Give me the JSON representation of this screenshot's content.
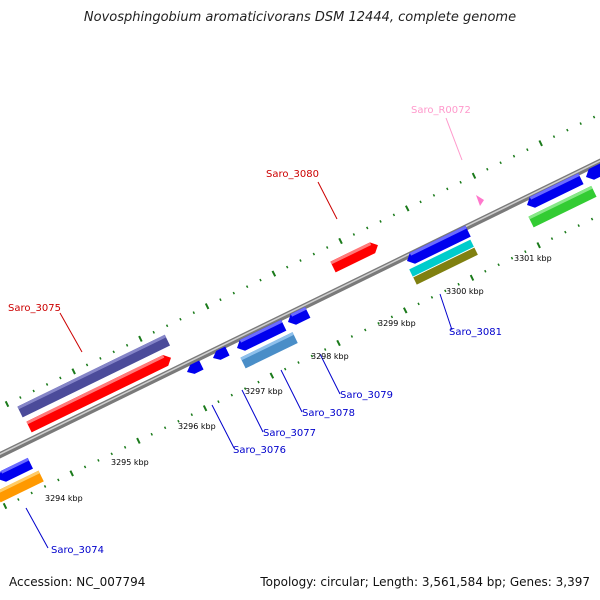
{
  "title": "Novosphingobium aromaticivorans DSM 12444, complete genome",
  "footer": {
    "accession": "Accession: NC_007794",
    "summary": "Topology: circular; Length: 3,561,584 bp; Genes: 3,397"
  },
  "colors": {
    "backbone": "#8a8a8a",
    "tick": "#1a7a1a",
    "forward_label": "#cc0000",
    "reverse_label": "#0000cc",
    "rna_label": "#ff99cc",
    "kbp_label": "#000000"
  },
  "scale_labels": [
    "3294 kbp",
    "3295 kbp",
    "3296 kbp",
    "3297 kbp",
    "3298 kbp",
    "3299 kbp",
    "3300 kbp",
    "3301 kbp"
  ],
  "gene_labels": {
    "forward": [
      "Saro_3075",
      "Saro_3080"
    ],
    "reverse": [
      "Saro_3074",
      "Saro_3076",
      "Saro_3077",
      "Saro_3078",
      "Saro_3079",
      "Saro_3081"
    ],
    "rna": [
      "Saro_R0072"
    ]
  },
  "feature_colors": {
    "forward_gene": "#ff0000",
    "forward_gene_dark": "#c80000",
    "forward_track_2": "#4b4b9a",
    "reverse_gene": "#0000ee",
    "reverse_gene_dark": "#0000a8",
    "reverse_track_2": "#4a8ec8",
    "orange": "#ff9900",
    "green": "#33cc33",
    "cyan": "#00cccc",
    "olive": "#808010",
    "pink": "#ff77cc"
  }
}
